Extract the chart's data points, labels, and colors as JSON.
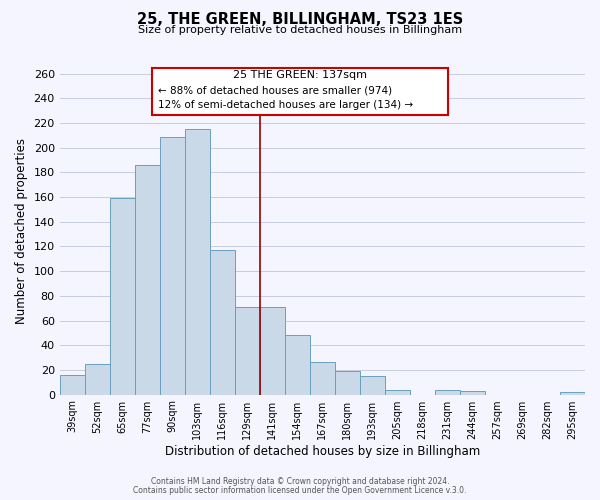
{
  "title": "25, THE GREEN, BILLINGHAM, TS23 1ES",
  "subtitle": "Size of property relative to detached houses in Billingham",
  "xlabel": "Distribution of detached houses by size in Billingham",
  "ylabel": "Number of detached properties",
  "bar_labels": [
    "39sqm",
    "52sqm",
    "65sqm",
    "77sqm",
    "90sqm",
    "103sqm",
    "116sqm",
    "129sqm",
    "141sqm",
    "154sqm",
    "167sqm",
    "180sqm",
    "193sqm",
    "205sqm",
    "218sqm",
    "231sqm",
    "244sqm",
    "257sqm",
    "269sqm",
    "282sqm",
    "295sqm"
  ],
  "bar_values": [
    16,
    25,
    159,
    186,
    209,
    215,
    117,
    71,
    71,
    48,
    26,
    19,
    15,
    4,
    0,
    4,
    3,
    0,
    0,
    0,
    2
  ],
  "bar_color": "#c9d9e8",
  "bar_edge_color": "#6a9fc0",
  "ylim": [
    0,
    265
  ],
  "yticks": [
    0,
    20,
    40,
    60,
    80,
    100,
    120,
    140,
    160,
    180,
    200,
    220,
    240,
    260
  ],
  "vline_x": 7.5,
  "vline_color": "#990000",
  "annotation_title": "25 THE GREEN: 137sqm",
  "annotation_line1": "← 88% of detached houses are smaller (974)",
  "annotation_line2": "12% of semi-detached houses are larger (134) →",
  "annotation_box_color": "#cc0000",
  "footer_line1": "Contains HM Land Registry data © Crown copyright and database right 2024.",
  "footer_line2": "Contains public sector information licensed under the Open Government Licence v.3.0.",
  "background_color": "#f5f5ff",
  "grid_color": "#c8cce0"
}
